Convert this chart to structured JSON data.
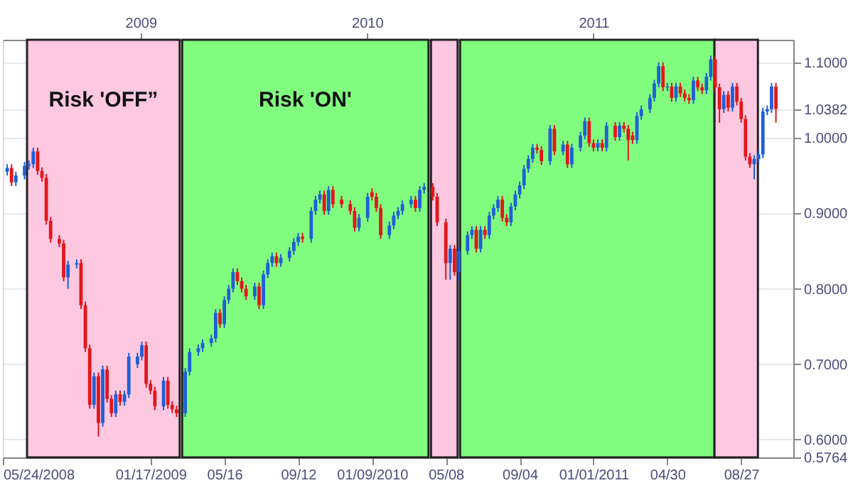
{
  "chart_data": {
    "type": "candlestick",
    "xlim": [
      "2008-05-24",
      "2011-11-19"
    ],
    "xticks": [
      {
        "value": "2008-05-24",
        "label": "05/24/2008"
      },
      {
        "value": "2009-01-17",
        "label": "01/17/2009"
      },
      {
        "value": "2009-05-16",
        "label": "05/16"
      },
      {
        "value": "2009-09-12",
        "label": "09/12"
      },
      {
        "value": "2010-01-09",
        "label": "01/09/2010"
      },
      {
        "value": "2010-05-08",
        "label": "05/08"
      },
      {
        "value": "2010-09-04",
        "label": "09/04"
      },
      {
        "value": "2011-01-01",
        "label": "01/01/2011"
      },
      {
        "value": "2011-04-30",
        "label": "04/30"
      },
      {
        "value": "2011-08-27",
        "label": "08/27"
      }
    ],
    "x2lim": [
      "2008-05-24",
      "2011-11-19"
    ],
    "x2ticks": [
      {
        "value": "2009-01-01",
        "label": "2009"
      },
      {
        "value": "2010-01-01",
        "label": "2010"
      },
      {
        "value": "2011-01-01",
        "label": "2011"
      }
    ],
    "ylim": [
      0.5764,
      1.13
    ],
    "yticks": [
      {
        "value": 0.5764,
        "label": "0.5764"
      },
      {
        "value": 0.6,
        "label": "0.6000"
      },
      {
        "value": 0.7,
        "label": "0.7000"
      },
      {
        "value": 0.8,
        "label": "0.8000"
      },
      {
        "value": 0.9,
        "label": "0.9000"
      },
      {
        "value": 1.0,
        "label": "1.0000"
      },
      {
        "value": 1.0382,
        "label": "1.0382"
      },
      {
        "value": 1.1,
        "label": "1.1000"
      }
    ],
    "grid": true,
    "bands": [
      {
        "axis": "x",
        "from": "2008-07-02",
        "to": "2009-03-05",
        "label": "Risk 'OFF”",
        "color": "#ffc8e1"
      },
      {
        "axis": "x",
        "from": "2009-03-09",
        "to": "2010-04-10",
        "label": "Risk 'ON'",
        "color": "#80fd7e"
      },
      {
        "axis": "x",
        "from": "2010-04-14",
        "to": "2010-05-27",
        "color": "#ffc8e1"
      },
      {
        "axis": "x",
        "from": "2010-05-31",
        "to": "2011-07-15",
        "color": "#80fd7e"
      },
      {
        "axis": "x",
        "from": "2011-07-15",
        "to": "2011-09-23",
        "color": "#ffc8e1"
      }
    ],
    "series": [
      {
        "color": "#1f5fd6",
        "x": [
          "2008-05-31",
          "2008-06-14",
          "2008-06-28",
          "2008-07-05",
          "2008-07-12",
          "2008-09-06",
          "2008-09-20",
          "2008-10-18",
          "2008-11-01",
          "2008-11-22",
          "2008-12-06",
          "2008-12-13",
          "2008-12-27",
          "2009-01-03",
          "2009-02-07",
          "2009-03-14",
          "2009-03-21",
          "2009-04-04",
          "2009-04-11",
          "2009-04-25",
          "2009-05-02",
          "2009-05-16",
          "2009-05-23",
          "2009-05-30",
          "2009-07-04",
          "2009-07-18",
          "2009-07-25",
          "2009-08-01",
          "2009-08-15",
          "2009-08-29",
          "2009-09-05",
          "2009-09-12",
          "2009-10-03",
          "2009-10-10",
          "2009-10-17",
          "2009-10-31",
          "2009-12-19",
          "2010-01-02",
          "2010-02-06",
          "2010-02-13",
          "2010-02-20",
          "2010-02-27",
          "2010-03-13",
          "2010-03-27",
          "2010-04-03",
          "2010-05-15",
          "2010-05-29",
          "2010-06-12",
          "2010-06-19",
          "2010-07-03",
          "2010-07-17",
          "2010-07-24",
          "2010-07-31",
          "2010-08-21",
          "2010-08-28",
          "2010-09-04",
          "2010-09-11",
          "2010-09-18",
          "2010-09-25",
          "2010-10-23",
          "2010-11-13",
          "2010-11-27",
          "2010-12-11",
          "2010-12-18",
          "2011-01-08",
          "2011-01-22",
          "2011-02-12",
          "2011-03-12",
          "2011-03-19",
          "2011-04-02",
          "2011-04-09",
          "2011-04-16",
          "2011-04-30",
          "2011-05-14",
          "2011-06-11",
          "2011-07-02",
          "2011-07-09",
          "2011-07-30",
          "2011-08-13",
          "2011-09-17",
          "2011-09-24",
          "2011-10-01",
          "2011-10-08",
          "2011-10-15"
        ],
        "ohlc": [
          [
            0.955,
            0.965,
            0.95,
            0.96
          ],
          [
            0.941,
            0.955,
            0.936,
            0.95
          ],
          [
            0.95,
            0.968,
            0.945,
            0.963
          ],
          [
            0.963,
            0.97,
            0.958,
            0.965
          ],
          [
            0.965,
            0.987,
            0.96,
            0.982
          ],
          [
            0.815,
            0.837,
            0.8,
            0.832
          ],
          [
            0.832,
            0.839,
            0.827,
            0.834
          ],
          [
            0.646,
            0.689,
            0.641,
            0.684
          ],
          [
            0.622,
            0.698,
            0.617,
            0.693
          ],
          [
            0.635,
            0.665,
            0.63,
            0.66
          ],
          [
            0.65,
            0.665,
            0.645,
            0.66
          ],
          [
            0.66,
            0.715,
            0.655,
            0.71
          ],
          [
            0.7,
            0.715,
            0.695,
            0.71
          ],
          [
            0.71,
            0.73,
            0.705,
            0.725
          ],
          [
            0.644,
            0.683,
            0.639,
            0.678
          ],
          [
            0.635,
            0.695,
            0.63,
            0.69
          ],
          [
            0.69,
            0.721,
            0.685,
            0.716
          ],
          [
            0.716,
            0.726,
            0.711,
            0.721
          ],
          [
            0.721,
            0.733,
            0.716,
            0.728
          ],
          [
            0.728,
            0.739,
            0.723,
            0.734
          ],
          [
            0.734,
            0.773,
            0.729,
            0.768
          ],
          [
            0.753,
            0.79,
            0.748,
            0.785
          ],
          [
            0.785,
            0.805,
            0.78,
            0.8
          ],
          [
            0.8,
            0.827,
            0.795,
            0.822
          ],
          [
            0.79,
            0.808,
            0.785,
            0.803
          ],
          [
            0.778,
            0.824,
            0.773,
            0.819
          ],
          [
            0.819,
            0.839,
            0.814,
            0.834
          ],
          [
            0.834,
            0.848,
            0.829,
            0.843
          ],
          [
            0.834,
            0.846,
            0.829,
            0.841
          ],
          [
            0.841,
            0.855,
            0.836,
            0.85
          ],
          [
            0.85,
            0.867,
            0.845,
            0.862
          ],
          [
            0.862,
            0.874,
            0.857,
            0.869
          ],
          [
            0.866,
            0.908,
            0.861,
            0.903
          ],
          [
            0.903,
            0.923,
            0.898,
            0.918
          ],
          [
            0.918,
            0.93,
            0.913,
            0.925
          ],
          [
            0.903,
            0.936,
            0.898,
            0.931
          ],
          [
            0.881,
            0.899,
            0.876,
            0.894
          ],
          [
            0.894,
            0.927,
            0.889,
            0.922
          ],
          [
            0.871,
            0.889,
            0.866,
            0.884
          ],
          [
            0.884,
            0.902,
            0.879,
            0.897
          ],
          [
            0.897,
            0.908,
            0.892,
            0.903
          ],
          [
            0.903,
            0.917,
            0.898,
            0.912
          ],
          [
            0.912,
            0.923,
            0.907,
            0.918
          ],
          [
            0.907,
            0.936,
            0.902,
            0.931
          ],
          [
            0.931,
            0.94,
            0.926,
            0.935
          ],
          [
            0.834,
            0.858,
            0.812,
            0.853
          ],
          [
            0.822,
            0.855,
            0.81,
            0.85
          ],
          [
            0.85,
            0.876,
            0.845,
            0.871
          ],
          [
            0.871,
            0.883,
            0.866,
            0.878
          ],
          [
            0.853,
            0.883,
            0.848,
            0.878
          ],
          [
            0.871,
            0.902,
            0.866,
            0.897
          ],
          [
            0.897,
            0.912,
            0.892,
            0.907
          ],
          [
            0.907,
            0.923,
            0.902,
            0.918
          ],
          [
            0.888,
            0.914,
            0.883,
            0.909
          ],
          [
            0.909,
            0.93,
            0.904,
            0.925
          ],
          [
            0.925,
            0.942,
            0.92,
            0.937
          ],
          [
            0.937,
            0.964,
            0.932,
            0.959
          ],
          [
            0.959,
            0.977,
            0.954,
            0.972
          ],
          [
            0.972,
            0.992,
            0.967,
            0.987
          ],
          [
            0.969,
            1.017,
            0.964,
            1.012
          ],
          [
            0.982,
            0.996,
            0.977,
            0.991
          ],
          [
            0.965,
            0.992,
            0.96,
            0.987
          ],
          [
            0.987,
            1.008,
            0.982,
            1.003
          ],
          [
            1.003,
            1.027,
            0.998,
            1.022
          ],
          [
            0.987,
            0.998,
            0.982,
            0.993
          ],
          [
            0.987,
            1.021,
            0.982,
            1.016
          ],
          [
            1.001,
            1.021,
            0.996,
            1.016
          ],
          [
            0.997,
            1.034,
            0.992,
            1.029
          ],
          [
            1.029,
            1.043,
            1.024,
            1.038
          ],
          [
            1.038,
            1.058,
            1.033,
            1.053
          ],
          [
            1.053,
            1.077,
            1.048,
            1.072
          ],
          [
            1.072,
            1.1,
            1.067,
            1.095
          ],
          [
            1.067,
            1.073,
            1.062,
            1.068
          ],
          [
            1.053,
            1.073,
            1.048,
            1.068
          ],
          [
            1.05,
            1.081,
            1.045,
            1.076
          ],
          [
            1.063,
            1.086,
            1.058,
            1.081
          ],
          [
            1.081,
            1.109,
            1.076,
            1.104
          ],
          [
            1.038,
            1.062,
            1.033,
            1.057
          ],
          [
            1.04,
            1.073,
            1.035,
            1.068
          ],
          [
            0.965,
            0.977,
            0.945,
            0.972
          ],
          [
            0.972,
            0.983,
            0.967,
            0.978
          ],
          [
            0.978,
            1.04,
            0.973,
            1.035
          ],
          [
            1.035,
            1.043,
            1.03,
            1.038
          ],
          [
            1.038,
            1.073,
            1.033,
            1.068
          ]
        ]
      },
      {
        "color": "#e3161b",
        "x": [
          "2008-06-07",
          "2008-07-19",
          "2008-07-26",
          "2008-08-02",
          "2008-08-09",
          "2008-08-23",
          "2008-08-30",
          "2008-09-27",
          "2008-10-04",
          "2008-10-11",
          "2008-10-25",
          "2008-11-08",
          "2008-11-15",
          "2008-11-29",
          "2009-01-10",
          "2009-01-17",
          "2009-01-24",
          "2009-02-14",
          "2009-02-21",
          "2009-02-28",
          "2009-05-09",
          "2009-06-06",
          "2009-06-13",
          "2009-06-20",
          "2009-07-11",
          "2009-08-08",
          "2009-09-19",
          "2009-10-24",
          "2009-11-07",
          "2009-11-21",
          "2009-12-05",
          "2009-12-12",
          "2010-01-09",
          "2010-01-16",
          "2010-01-23",
          "2010-03-20",
          "2010-04-17",
          "2010-04-24",
          "2010-05-08",
          "2010-05-22",
          "2010-06-26",
          "2010-07-10",
          "2010-08-07",
          "2010-08-14",
          "2010-10-02",
          "2010-10-09",
          "2010-10-30",
          "2010-11-20",
          "2010-12-25",
          "2011-01-01",
          "2011-01-15",
          "2011-02-05",
          "2011-02-19",
          "2011-02-26",
          "2011-03-05",
          "2011-04-23",
          "2011-05-07",
          "2011-05-21",
          "2011-05-28",
          "2011-06-04",
          "2011-06-18",
          "2011-06-25",
          "2011-07-16",
          "2011-07-23",
          "2011-08-06",
          "2011-08-20",
          "2011-08-27",
          "2011-09-03",
          "2011-09-10",
          "2011-10-22"
        ],
        "ohlc": [
          [
            0.96,
            0.965,
            0.936,
            0.941
          ],
          [
            0.982,
            0.987,
            0.951,
            0.956
          ],
          [
            0.956,
            0.961,
            0.942,
            0.947
          ],
          [
            0.947,
            0.952,
            0.885,
            0.89
          ],
          [
            0.89,
            0.895,
            0.861,
            0.866
          ],
          [
            0.866,
            0.871,
            0.855,
            0.86
          ],
          [
            0.86,
            0.865,
            0.81,
            0.815
          ],
          [
            0.834,
            0.839,
            0.773,
            0.778
          ],
          [
            0.778,
            0.783,
            0.716,
            0.721
          ],
          [
            0.721,
            0.726,
            0.641,
            0.646
          ],
          [
            0.684,
            0.689,
            0.604,
            0.622
          ],
          [
            0.693,
            0.698,
            0.649,
            0.654
          ],
          [
            0.654,
            0.659,
            0.63,
            0.635
          ],
          [
            0.66,
            0.665,
            0.645,
            0.65
          ],
          [
            0.725,
            0.73,
            0.669,
            0.674
          ],
          [
            0.674,
            0.679,
            0.66,
            0.665
          ],
          [
            0.665,
            0.67,
            0.639,
            0.644
          ],
          [
            0.678,
            0.683,
            0.641,
            0.646
          ],
          [
            0.646,
            0.651,
            0.635,
            0.64
          ],
          [
            0.64,
            0.645,
            0.63,
            0.635
          ],
          [
            0.768,
            0.773,
            0.748,
            0.753
          ],
          [
            0.822,
            0.827,
            0.805,
            0.81
          ],
          [
            0.81,
            0.815,
            0.795,
            0.8
          ],
          [
            0.8,
            0.805,
            0.785,
            0.79
          ],
          [
            0.803,
            0.808,
            0.773,
            0.778
          ],
          [
            0.843,
            0.848,
            0.829,
            0.834
          ],
          [
            0.869,
            0.874,
            0.861,
            0.866
          ],
          [
            0.925,
            0.93,
            0.898,
            0.903
          ],
          [
            0.931,
            0.936,
            0.907,
            0.912
          ],
          [
            0.918,
            0.923,
            0.907,
            0.912
          ],
          [
            0.912,
            0.917,
            0.898,
            0.903
          ],
          [
            0.903,
            0.908,
            0.876,
            0.881
          ],
          [
            0.928,
            0.933,
            0.917,
            0.922
          ],
          [
            0.922,
            0.927,
            0.902,
            0.907
          ],
          [
            0.907,
            0.912,
            0.866,
            0.871
          ],
          [
            0.918,
            0.923,
            0.902,
            0.907
          ],
          [
            0.935,
            0.94,
            0.917,
            0.922
          ],
          [
            0.922,
            0.927,
            0.883,
            0.888
          ],
          [
            0.888,
            0.893,
            0.812,
            0.834
          ],
          [
            0.853,
            0.858,
            0.817,
            0.822
          ],
          [
            0.878,
            0.883,
            0.848,
            0.853
          ],
          [
            0.878,
            0.883,
            0.866,
            0.871
          ],
          [
            0.918,
            0.923,
            0.889,
            0.894
          ],
          [
            0.894,
            0.899,
            0.883,
            0.888
          ],
          [
            0.987,
            0.992,
            0.979,
            0.984
          ],
          [
            0.984,
            0.989,
            0.964,
            0.969
          ],
          [
            1.012,
            1.017,
            0.977,
            0.982
          ],
          [
            0.991,
            0.996,
            0.96,
            0.965
          ],
          [
            1.022,
            1.027,
            0.988,
            0.993
          ],
          [
            0.993,
            0.998,
            0.982,
            0.987
          ],
          [
            0.993,
            0.998,
            0.982,
            0.987
          ],
          [
            1.016,
            1.021,
            0.996,
            1.001
          ],
          [
            1.016,
            1.021,
            1.007,
            1.012
          ],
          [
            1.012,
            1.017,
            0.97,
            0.997
          ],
          [
            1.003,
            1.008,
            0.992,
            0.997
          ],
          [
            1.095,
            1.1,
            1.062,
            1.067
          ],
          [
            1.068,
            1.073,
            1.048,
            1.053
          ],
          [
            1.068,
            1.073,
            1.054,
            1.059
          ],
          [
            1.059,
            1.064,
            1.048,
            1.053
          ],
          [
            1.053,
            1.058,
            1.045,
            1.05
          ],
          [
            1.076,
            1.081,
            1.062,
            1.067
          ],
          [
            1.067,
            1.072,
            1.058,
            1.063
          ],
          [
            1.104,
            1.109,
            1.062,
            1.067
          ],
          [
            1.067,
            1.072,
            1.02,
            1.038
          ],
          [
            1.057,
            1.062,
            1.035,
            1.04
          ],
          [
            1.068,
            1.073,
            1.043,
            1.048
          ],
          [
            1.048,
            1.053,
            1.02,
            1.025
          ],
          [
            1.025,
            1.03,
            0.97,
            0.975
          ],
          [
            0.975,
            0.98,
            0.96,
            0.965
          ],
          [
            1.068,
            1.073,
            1.02,
            1.0382
          ]
        ]
      }
    ]
  }
}
